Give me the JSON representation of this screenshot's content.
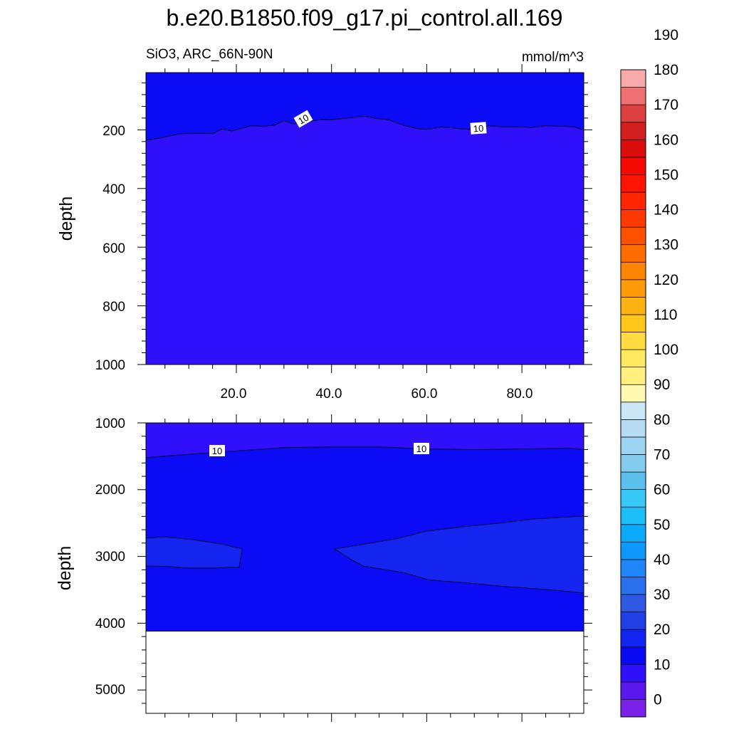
{
  "title": "b.e20.B1850.f09_g17.pi_control.all.169",
  "subtitle_left": "SiO3, ARC_66N-90N",
  "subtitle_right": "mmol/m^3",
  "colors": {
    "fill_0_10_deep": "#3010FA",
    "fill_10_20": "#0B0BF5",
    "fill_20_30": "#1525F0",
    "outline": "#000000"
  },
  "colorbar": {
    "labels": [
      "0",
      "10",
      "20",
      "30",
      "40",
      "50",
      "60",
      "70",
      "80",
      "90",
      "100",
      "110",
      "120",
      "130",
      "140",
      "150",
      "160",
      "170",
      "180",
      "190"
    ],
    "colors": [
      "#7B22E8",
      "#5A18EE",
      "#3010FA",
      "#0A0AF2",
      "#1226F2",
      "#2040E6",
      "#3058E0",
      "#2A70EC",
      "#1E86F6",
      "#0E98FC",
      "#0AAAF8",
      "#1CBEF8",
      "#38C8F8",
      "#5CC0EE",
      "#84CBF0",
      "#9DD4F2",
      "#B6DCF4",
      "#CBE6F6",
      "#FFF8B0",
      "#FFF080",
      "#FFE860",
      "#FFDA40",
      "#FFC61C",
      "#FFB214",
      "#FF9A08",
      "#FF8600",
      "#FF6C00",
      "#FF5200",
      "#FF3A00",
      "#FF2600",
      "#FF1400",
      "#F40A00",
      "#DA0C0C",
      "#D21E1E",
      "#DC4040",
      "#EE7070",
      "#F8AAAA"
    ]
  },
  "chart_data": [
    {
      "type": "contour",
      "panel": "upper",
      "xlabel": "",
      "ylabel": "depth",
      "xlim": [
        1,
        93
      ],
      "ylim": [
        1000,
        5
      ],
      "xticks": [
        "20.0",
        "40.0",
        "60.0",
        "80.0"
      ],
      "yticks": [
        "200",
        "400",
        "600",
        "800",
        "1000"
      ],
      "contour_labels": [
        "10",
        "10"
      ],
      "regions": [
        {
          "range": "10-20",
          "extent": "surface to ~150-240 m"
        },
        {
          "range": "0-10",
          "extent": "~200 m to 1000 m"
        }
      ],
      "contour_10_depth": {
        "x": [
          1,
          4,
          8,
          12,
          15,
          17,
          19,
          21,
          23,
          26,
          28,
          30,
          32,
          35,
          38,
          40,
          42,
          45,
          47,
          49,
          52,
          55,
          58,
          60,
          63,
          65,
          68,
          70,
          73,
          76,
          79,
          82,
          85,
          88,
          91,
          93
        ],
        "y": [
          236,
          228,
          214,
          212,
          213,
          197,
          204,
          196,
          186,
          188,
          184,
          169,
          180,
          172,
          165,
          166,
          162,
          157,
          154,
          160,
          166,
          184,
          196,
          199,
          191,
          193,
          198,
          200,
          186,
          190,
          190,
          192,
          186,
          188,
          190,
          200
        ]
      }
    },
    {
      "type": "contour",
      "panel": "lower",
      "xlabel": "",
      "ylabel": "depth",
      "xlim": [
        1,
        93
      ],
      "ylim": [
        5350,
        1000
      ],
      "yticks": [
        "1000",
        "2000",
        "3000",
        "4000",
        "5000"
      ],
      "contour_labels": [
        "10",
        "10"
      ],
      "regions": [
        {
          "range": "0-10",
          "extent": "1000 m to ~1400-1500 m"
        },
        {
          "range": "10-20",
          "extent": "~1400 m to bottom at ~4100 m"
        },
        {
          "range": "20-30",
          "extent": "patch x 1-21, ~2750-3150 m; patch x 41-93, ~2400-3550 m"
        }
      ],
      "contour_10_depth": {
        "x": [
          1,
          10,
          20,
          30,
          40,
          50,
          60,
          70,
          80,
          90,
          93
        ],
        "y": [
          1520,
          1470,
          1420,
          1370,
          1360,
          1360,
          1390,
          1400,
          1390,
          1380,
          1400
        ]
      },
      "bottom_depth": 4120
    }
  ]
}
